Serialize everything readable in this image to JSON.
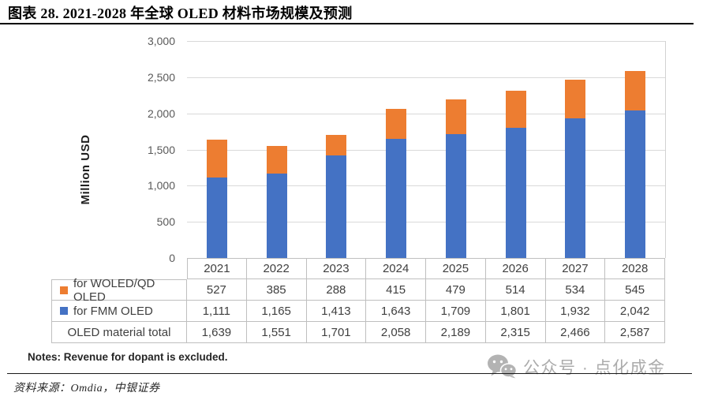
{
  "page": {
    "title": "图表 28. 2021-2028 年全球 OLED 材料市场规模及预测",
    "notes": "Notes: Revenue for dopant is excluded.",
    "source": "资料来源：Omdia，中银证券",
    "watermark_text": "公众号 · 点化成金"
  },
  "chart_data": {
    "type": "bar",
    "stacked": true,
    "title": "2021-2028 年全球 OLED 材料市场规模及预测",
    "ylabel": "Million USD",
    "xlabel": "",
    "ylim": [
      0,
      3000
    ],
    "ytick_step": 500,
    "yticks": [
      "3,000",
      "2,500",
      "2,000",
      "1,500",
      "1,000",
      "500",
      "0"
    ],
    "grid": true,
    "legend_position": "data-table-left",
    "categories": [
      "2021",
      "2022",
      "2023",
      "2024",
      "2025",
      "2026",
      "2027",
      "2028"
    ],
    "series": [
      {
        "name": "for WOLED/QD OLED",
        "color": "#ED7D31",
        "stack_position": "top",
        "values": [
          527,
          385,
          288,
          415,
          479,
          514,
          534,
          545
        ]
      },
      {
        "name": "for FMM OLED",
        "color": "#4472C4",
        "stack_position": "bottom",
        "values": [
          1111,
          1165,
          1413,
          1643,
          1709,
          1801,
          1932,
          2042
        ]
      }
    ],
    "totals": {
      "name": "OLED material total",
      "values": [
        1639,
        1551,
        1701,
        2058,
        2189,
        2315,
        2466,
        2587
      ]
    }
  },
  "colors": {
    "orange": "#ED7D31",
    "blue": "#4472C4",
    "gridline": "#D9D9D9",
    "table_border": "#BFBFBF",
    "table_text": "#3F3F3F",
    "tick_text": "#595959",
    "watermark": "#ABABAB"
  }
}
